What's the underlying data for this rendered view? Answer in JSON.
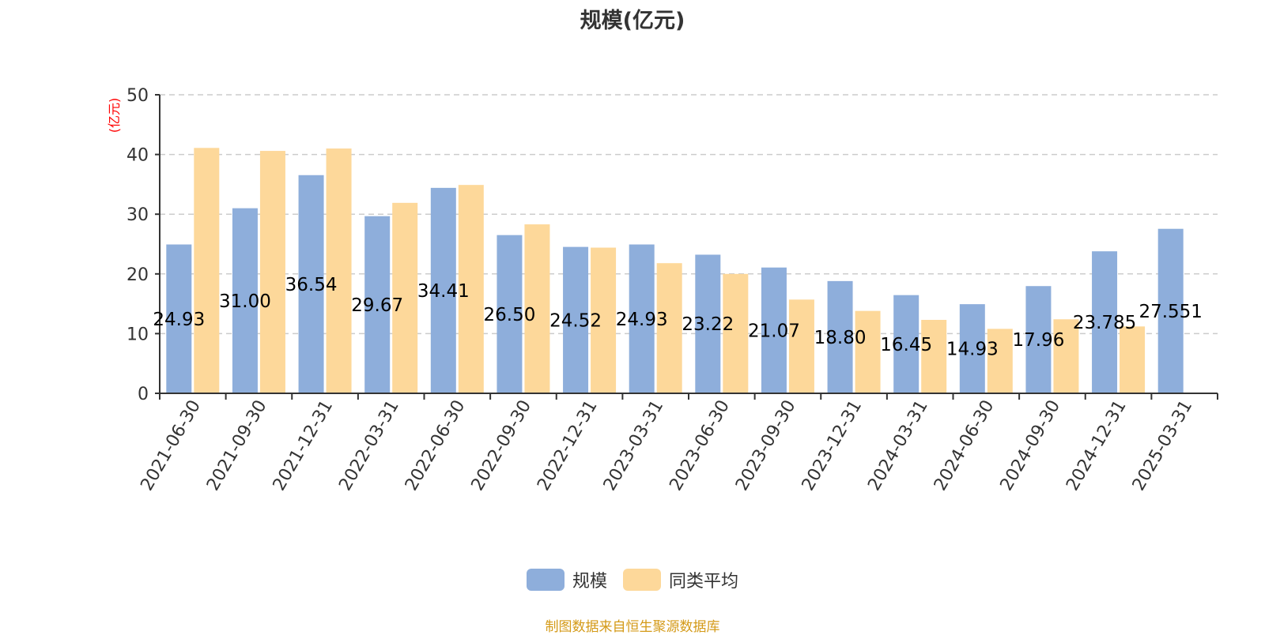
{
  "colors": {
    "series_a": "#8eaedb",
    "series_b": "#fdd89a",
    "axis": "#333333",
    "grid": "#cccccc",
    "unit": "#ff0000",
    "source": "#d49a18"
  },
  "source_note": "制图数据来自恒生聚源数据库",
  "chart_data": {
    "type": "bar",
    "title": "规模(亿元)",
    "ylabel": "(亿元)",
    "xlabel": "",
    "ylim": [
      0,
      50
    ],
    "yticks": [
      0,
      10,
      20,
      30,
      40,
      50
    ],
    "grid": true,
    "legend": "bottom-center",
    "categories": [
      "2021-06-30",
      "2021-09-30",
      "2021-12-31",
      "2022-03-31",
      "2022-06-30",
      "2022-09-30",
      "2022-12-31",
      "2023-03-31",
      "2023-06-30",
      "2023-09-30",
      "2023-12-31",
      "2024-03-31",
      "2024-06-30",
      "2024-09-30",
      "2024-12-31",
      "2025-03-31"
    ],
    "series": [
      {
        "name": "规模",
        "values": [
          24.93,
          31.0,
          36.54,
          29.67,
          34.41,
          26.5,
          24.52,
          24.93,
          23.22,
          21.07,
          18.8,
          16.45,
          14.93,
          17.96,
          23.785,
          27.551
        ],
        "labels": [
          "24.93",
          "31.00",
          "36.54",
          "29.67",
          "34.41",
          "26.50",
          "24.52",
          "24.93",
          "23.22",
          "21.07",
          "18.80",
          "16.45",
          "14.93",
          "17.96",
          "23.785",
          "27.551"
        ]
      },
      {
        "name": "同类平均",
        "values": [
          41.1,
          40.6,
          41.0,
          31.9,
          34.9,
          28.3,
          24.4,
          21.8,
          20.0,
          15.7,
          13.8,
          12.3,
          10.8,
          12.4,
          11.2,
          null
        ]
      }
    ]
  }
}
